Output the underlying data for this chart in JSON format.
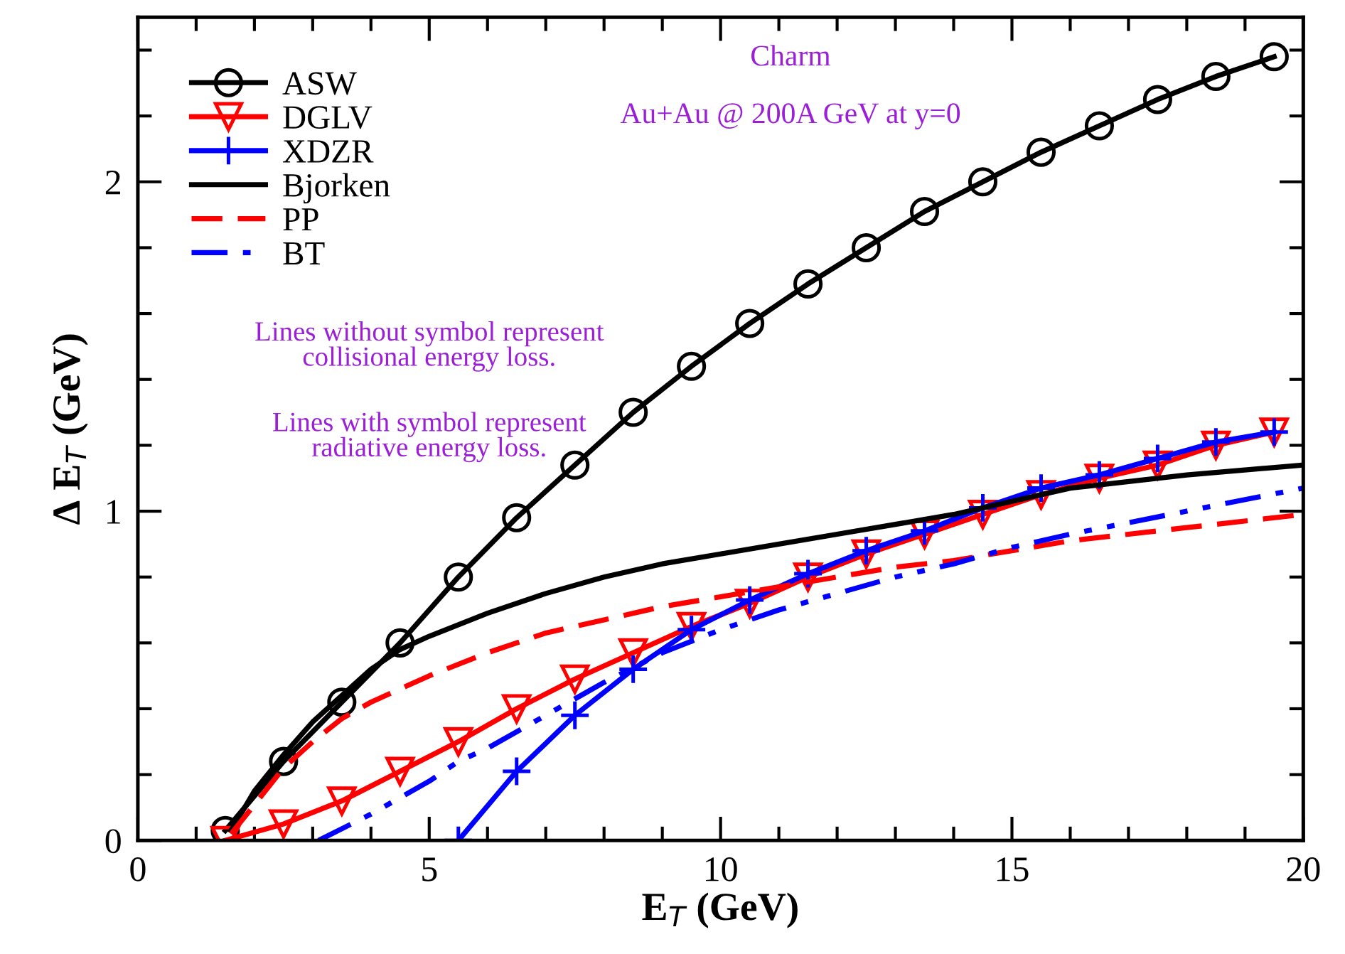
{
  "chart_data": {
    "type": "line",
    "xlabel": "E$_{T}$ (GeV)",
    "ylabel": "Δ E$_{T}$ (GeV)",
    "xlim": [
      0,
      20
    ],
    "ylim": [
      0,
      2.5
    ],
    "xticks": [
      0,
      {
        "value": 1,
        "label": null
      },
      {
        "value": 2,
        "label": null
      },
      {
        "value": 3,
        "label": null
      },
      {
        "value": 4,
        "label": null
      },
      5,
      {
        "value": 6,
        "label": null
      },
      {
        "value": 7,
        "label": null
      },
      {
        "value": 8,
        "label": null
      },
      {
        "value": 9,
        "label": null
      },
      10,
      {
        "value": 11,
        "label": null
      },
      {
        "value": 12,
        "label": null
      },
      {
        "value": 13,
        "label": null
      },
      {
        "value": 14,
        "label": null
      },
      15,
      {
        "value": 16,
        "label": null
      },
      {
        "value": 17,
        "label": null
      },
      {
        "value": 18,
        "label": null
      },
      {
        "value": 19,
        "label": null
      },
      20
    ],
    "yticks": [
      0,
      {
        "value": 0.2,
        "label": null
      },
      {
        "value": 0.4,
        "label": null
      },
      {
        "value": 0.6,
        "label": null
      },
      {
        "value": 0.8,
        "label": null
      },
      1,
      {
        "value": 1.2,
        "label": null
      },
      {
        "value": 1.4,
        "label": null
      },
      {
        "value": 1.6,
        "label": null
      },
      {
        "value": 1.8,
        "label": null
      },
      2,
      {
        "value": 2.2,
        "label": null
      },
      {
        "value": 2.4,
        "label": null
      }
    ],
    "grid": false,
    "legend": "top left",
    "annotations": [
      "Charm",
      "Au+Au @ 200A GeV at y=0",
      "Lines without symbol represent\ncollisional energy loss.",
      "Lines with symbol represent\nradiative energy loss."
    ],
    "series": [
      {
        "name": "ASW",
        "color": "#000000",
        "marker": "circle",
        "line_style": "solid",
        "x": [
          1.5,
          2.5,
          3.5,
          4.5,
          5.5,
          6.5,
          7.5,
          8.5,
          9.5,
          10.5,
          11.5,
          12.5,
          13.5,
          14.5,
          15.5,
          16.5,
          17.5,
          18.5,
          19.5
        ],
        "values": [
          0.03,
          0.24,
          0.42,
          0.6,
          0.8,
          0.98,
          1.14,
          1.3,
          1.44,
          1.57,
          1.69,
          1.8,
          1.91,
          2.0,
          2.09,
          2.17,
          2.25,
          2.32,
          2.38
        ]
      },
      {
        "name": "DGLV",
        "color": "#ff0000",
        "marker": "triangle",
        "line_style": "solid",
        "x": [
          1.5,
          2.5,
          3.5,
          4.5,
          5.5,
          6.5,
          7.5,
          8.5,
          9.5,
          10.5,
          11.5,
          12.5,
          13.5,
          14.5,
          15.5,
          16.5,
          17.5,
          18.5,
          19.5
        ],
        "values": [
          0.0,
          0.05,
          0.12,
          0.21,
          0.3,
          0.4,
          0.49,
          0.57,
          0.65,
          0.72,
          0.8,
          0.87,
          0.93,
          0.99,
          1.05,
          1.1,
          1.14,
          1.2,
          1.24
        ]
      },
      {
        "name": "XDZR",
        "color": "#0000ff",
        "marker": "cross",
        "line_style": "solid",
        "x": [
          5.5,
          6.5,
          7.5,
          8.5,
          9.5,
          10.5,
          11.5,
          12.5,
          13.5,
          14.5,
          15.5,
          16.5,
          17.5,
          18.5,
          19.5
        ],
        "values": [
          0.0,
          0.21,
          0.38,
          0.52,
          0.64,
          0.73,
          0.81,
          0.88,
          0.94,
          1.01,
          1.07,
          1.11,
          1.16,
          1.21,
          1.24
        ]
      },
      {
        "name": "Bjorken",
        "color": "#000000",
        "marker": "none",
        "line_style": "solid",
        "x": [
          1.6,
          2,
          2.5,
          3,
          3.5,
          4,
          4.5,
          5,
          6,
          7,
          8,
          9,
          10,
          12,
          14,
          16,
          18,
          20
        ],
        "values": [
          0.03,
          0.15,
          0.26,
          0.36,
          0.44,
          0.52,
          0.58,
          0.62,
          0.69,
          0.75,
          0.8,
          0.84,
          0.87,
          0.93,
          0.99,
          1.07,
          1.11,
          1.14
        ]
      },
      {
        "name": "PP",
        "color": "#ff0000",
        "marker": "none",
        "line_style": "dashed",
        "x": [
          1.6,
          2.5,
          3,
          3.5,
          4,
          5,
          6,
          7,
          8,
          9,
          10,
          11,
          12,
          13,
          14,
          15,
          16,
          18,
          20
        ],
        "values": [
          0.02,
          0.22,
          0.3,
          0.37,
          0.42,
          0.5,
          0.57,
          0.63,
          0.67,
          0.71,
          0.74,
          0.77,
          0.8,
          0.83,
          0.85,
          0.88,
          0.91,
          0.95,
          0.99
        ]
      },
      {
        "name": "BT",
        "color": "#0000ff",
        "marker": "none",
        "line_style": "dashdot",
        "x": [
          3.1,
          4,
          5,
          5.5,
          6,
          7,
          8,
          9,
          10,
          11,
          12,
          13,
          14,
          15,
          16,
          18,
          20
        ],
        "values": [
          0.0,
          0.08,
          0.18,
          0.24,
          0.28,
          0.38,
          0.48,
          0.57,
          0.64,
          0.7,
          0.75,
          0.8,
          0.84,
          0.89,
          0.93,
          1.0,
          1.07
        ]
      }
    ]
  }
}
